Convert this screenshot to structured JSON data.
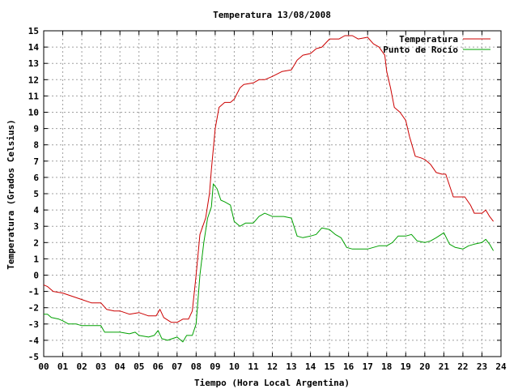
{
  "chart_data": {
    "type": "line",
    "title": "Temperatura 13/08/2008",
    "xlabel": "Tiempo (Hora Local Argentina)",
    "ylabel": "Temperatura (Grados Celsius)",
    "xlim": [
      0,
      24
    ],
    "ylim": [
      -5,
      15
    ],
    "x_ticks": [
      "00",
      "01",
      "02",
      "03",
      "04",
      "05",
      "06",
      "07",
      "08",
      "09",
      "10",
      "11",
      "12",
      "13",
      "14",
      "15",
      "16",
      "17",
      "18",
      "19",
      "20",
      "21",
      "22",
      "23",
      "24"
    ],
    "y_ticks": [
      "-5",
      "-4",
      "-3",
      "-2",
      "-1",
      "0",
      "1",
      "2",
      "3",
      "4",
      "5",
      "6",
      "7",
      "8",
      "9",
      "10",
      "11",
      "12",
      "13",
      "14",
      "15"
    ],
    "grid": true,
    "legend_position": "top-right",
    "series": [
      {
        "name": "Temperatura",
        "color": "#cc0000",
        "points": [
          [
            0.0,
            -0.6
          ],
          [
            0.2,
            -0.7
          ],
          [
            0.5,
            -1.0
          ],
          [
            1.0,
            -1.1
          ],
          [
            1.5,
            -1.3
          ],
          [
            2.0,
            -1.5
          ],
          [
            2.5,
            -1.7
          ],
          [
            3.0,
            -1.7
          ],
          [
            3.3,
            -2.1
          ],
          [
            3.7,
            -2.2
          ],
          [
            4.0,
            -2.2
          ],
          [
            4.5,
            -2.4
          ],
          [
            5.0,
            -2.3
          ],
          [
            5.5,
            -2.5
          ],
          [
            5.9,
            -2.5
          ],
          [
            6.1,
            -2.1
          ],
          [
            6.3,
            -2.6
          ],
          [
            6.7,
            -2.9
          ],
          [
            7.0,
            -2.9
          ],
          [
            7.3,
            -2.7
          ],
          [
            7.6,
            -2.7
          ],
          [
            7.8,
            -2.2
          ],
          [
            8.0,
            0.0
          ],
          [
            8.2,
            2.5
          ],
          [
            8.5,
            3.5
          ],
          [
            8.7,
            5.0
          ],
          [
            8.8,
            6.5
          ],
          [
            9.0,
            9.0
          ],
          [
            9.2,
            10.3
          ],
          [
            9.5,
            10.6
          ],
          [
            9.8,
            10.6
          ],
          [
            10.0,
            10.8
          ],
          [
            10.3,
            11.5
          ],
          [
            10.5,
            11.7
          ],
          [
            11.0,
            11.8
          ],
          [
            11.3,
            12.0
          ],
          [
            11.6,
            12.0
          ],
          [
            12.0,
            12.2
          ],
          [
            12.5,
            12.5
          ],
          [
            13.0,
            12.6
          ],
          [
            13.3,
            13.2
          ],
          [
            13.6,
            13.5
          ],
          [
            14.0,
            13.6
          ],
          [
            14.3,
            13.9
          ],
          [
            14.6,
            14.0
          ],
          [
            15.0,
            14.5
          ],
          [
            15.5,
            14.5
          ],
          [
            15.8,
            14.7
          ],
          [
            16.2,
            14.7
          ],
          [
            16.5,
            14.5
          ],
          [
            17.0,
            14.6
          ],
          [
            17.3,
            14.2
          ],
          [
            17.6,
            14.0
          ],
          [
            17.9,
            13.5
          ],
          [
            18.0,
            12.5
          ],
          [
            18.2,
            11.5
          ],
          [
            18.4,
            10.3
          ],
          [
            18.7,
            10.0
          ],
          [
            19.0,
            9.5
          ],
          [
            19.2,
            8.5
          ],
          [
            19.5,
            7.3
          ],
          [
            19.8,
            7.2
          ],
          [
            20.0,
            7.1
          ],
          [
            20.3,
            6.8
          ],
          [
            20.6,
            6.3
          ],
          [
            20.9,
            6.2
          ],
          [
            21.1,
            6.2
          ],
          [
            21.3,
            5.5
          ],
          [
            21.5,
            4.8
          ],
          [
            21.8,
            4.8
          ],
          [
            22.1,
            4.8
          ],
          [
            22.4,
            4.3
          ],
          [
            22.6,
            3.8
          ],
          [
            22.8,
            3.8
          ],
          [
            23.0,
            3.8
          ],
          [
            23.2,
            4.0
          ],
          [
            23.4,
            3.6
          ],
          [
            23.6,
            3.3
          ]
        ]
      },
      {
        "name": "Punto de Rocío",
        "color": "#00a000",
        "points": [
          [
            0.0,
            -2.4
          ],
          [
            0.2,
            -2.4
          ],
          [
            0.4,
            -2.6
          ],
          [
            0.8,
            -2.7
          ],
          [
            1.0,
            -2.8
          ],
          [
            1.3,
            -3.0
          ],
          [
            1.7,
            -3.0
          ],
          [
            2.0,
            -3.1
          ],
          [
            2.5,
            -3.1
          ],
          [
            3.0,
            -3.1
          ],
          [
            3.2,
            -3.5
          ],
          [
            3.7,
            -3.5
          ],
          [
            4.0,
            -3.5
          ],
          [
            4.5,
            -3.6
          ],
          [
            4.8,
            -3.5
          ],
          [
            5.0,
            -3.7
          ],
          [
            5.5,
            -3.8
          ],
          [
            5.8,
            -3.7
          ],
          [
            6.0,
            -3.4
          ],
          [
            6.2,
            -3.9
          ],
          [
            6.5,
            -4.0
          ],
          [
            7.0,
            -3.8
          ],
          [
            7.3,
            -4.1
          ],
          [
            7.5,
            -3.7
          ],
          [
            7.8,
            -3.7
          ],
          [
            8.0,
            -3.0
          ],
          [
            8.2,
            0.0
          ],
          [
            8.4,
            2.0
          ],
          [
            8.6,
            3.5
          ],
          [
            8.8,
            4.2
          ],
          [
            8.9,
            5.6
          ],
          [
            9.1,
            5.3
          ],
          [
            9.3,
            4.6
          ],
          [
            9.5,
            4.5
          ],
          [
            9.8,
            4.3
          ],
          [
            10.0,
            3.3
          ],
          [
            10.3,
            3.0
          ],
          [
            10.6,
            3.2
          ],
          [
            11.0,
            3.2
          ],
          [
            11.3,
            3.6
          ],
          [
            11.6,
            3.8
          ],
          [
            12.0,
            3.6
          ],
          [
            12.3,
            3.6
          ],
          [
            12.6,
            3.6
          ],
          [
            13.0,
            3.5
          ],
          [
            13.3,
            2.4
          ],
          [
            13.6,
            2.3
          ],
          [
            14.0,
            2.4
          ],
          [
            14.3,
            2.5
          ],
          [
            14.6,
            2.9
          ],
          [
            15.0,
            2.8
          ],
          [
            15.3,
            2.5
          ],
          [
            15.6,
            2.3
          ],
          [
            15.9,
            1.7
          ],
          [
            16.2,
            1.6
          ],
          [
            16.6,
            1.6
          ],
          [
            17.0,
            1.6
          ],
          [
            17.3,
            1.7
          ],
          [
            17.6,
            1.8
          ],
          [
            18.0,
            1.8
          ],
          [
            18.3,
            2.0
          ],
          [
            18.6,
            2.4
          ],
          [
            19.0,
            2.4
          ],
          [
            19.3,
            2.5
          ],
          [
            19.6,
            2.1
          ],
          [
            20.0,
            2.0
          ],
          [
            20.3,
            2.1
          ],
          [
            20.6,
            2.3
          ],
          [
            21.0,
            2.6
          ],
          [
            21.3,
            1.9
          ],
          [
            21.6,
            1.7
          ],
          [
            22.0,
            1.6
          ],
          [
            22.3,
            1.8
          ],
          [
            22.6,
            1.9
          ],
          [
            23.0,
            2.0
          ],
          [
            23.2,
            2.2
          ],
          [
            23.4,
            1.9
          ],
          [
            23.6,
            1.5
          ]
        ]
      }
    ]
  }
}
